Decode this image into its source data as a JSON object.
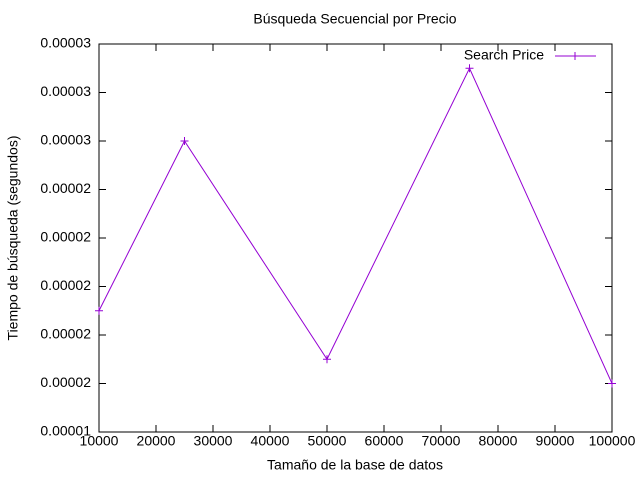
{
  "chart_data": {
    "type": "line",
    "title": "Búsqueda Secuencial por Precio",
    "x_label": "Tamaño de la base de datos",
    "y_label": "Tiempo de búsqueda (segundos)",
    "x": [
      10000,
      25000,
      50000,
      75000,
      100000
    ],
    "series": [
      {
        "name": "Search Price",
        "color": "#9400d3",
        "values": [
          1.9e-05,
          2.6e-05,
          1.7e-05,
          2.9e-05,
          1.6e-05
        ]
      }
    ],
    "xlim": [
      10000,
      100000
    ],
    "xticks": [
      10000,
      20000,
      30000,
      40000,
      50000,
      60000,
      70000,
      80000,
      90000,
      100000
    ],
    "ylim": [
      1.4e-05,
      3e-05
    ],
    "yticks": [
      {
        "value": 1.4e-05,
        "label": "0.00001"
      },
      {
        "value": 1.6e-05,
        "label": "0.00002"
      },
      {
        "value": 1.8e-05,
        "label": "0.00002"
      },
      {
        "value": 2e-05,
        "label": "0.00002"
      },
      {
        "value": 2.2e-05,
        "label": "0.00002"
      },
      {
        "value": 2.4e-05,
        "label": "0.00002"
      },
      {
        "value": 2.6e-05,
        "label": "0.00003"
      },
      {
        "value": 2.8e-05,
        "label": "0.00003"
      },
      {
        "value": 3e-05,
        "label": "0.00003"
      }
    ],
    "legend": "top-right",
    "grid": false
  }
}
